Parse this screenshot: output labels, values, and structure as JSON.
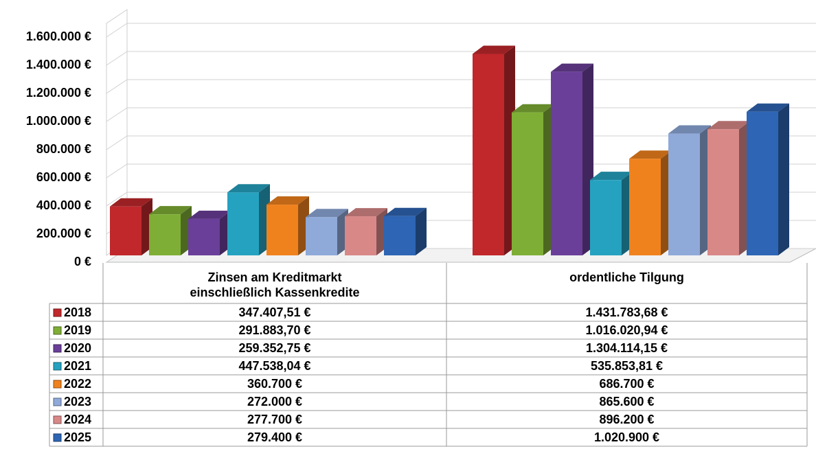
{
  "chart_data": {
    "type": "bar3d",
    "categories": [
      "Zinsen am Kreditmarkt einschließlich Kassenkredite",
      "ordentliche Tilgung"
    ],
    "series": [
      {
        "name": "2018",
        "color": "#c0282c",
        "values": [
          347407.51,
          1431783.68
        ],
        "value_labels": [
          "347.407,51 €",
          "1.431.783,68 €"
        ]
      },
      {
        "name": "2019",
        "color": "#7fae36",
        "values": [
          291883.7,
          1016020.94
        ],
        "value_labels": [
          "291.883,70 €",
          "1.016.020,94 €"
        ]
      },
      {
        "name": "2020",
        "color": "#6a3f99",
        "values": [
          259352.75,
          1304114.15
        ],
        "value_labels": [
          "259.352,75 €",
          "1.304.114,15 €"
        ]
      },
      {
        "name": "2021",
        "color": "#25a2c0",
        "values": [
          447538.04,
          535853.81
        ],
        "value_labels": [
          "447.538,04 €",
          "535.853,81 €"
        ]
      },
      {
        "name": "2022",
        "color": "#f0821e",
        "values": [
          360700,
          686700
        ],
        "value_labels": [
          "360.700 €",
          "686.700 €"
        ]
      },
      {
        "name": "2023",
        "color": "#8fa9d9",
        "values": [
          272000,
          865600
        ],
        "value_labels": [
          "272.000 €",
          "865.600 €"
        ]
      },
      {
        "name": "2024",
        "color": "#d98888",
        "values": [
          277700,
          896200
        ],
        "value_labels": [
          "277.700 €",
          "896.200 €"
        ]
      },
      {
        "name": "2025",
        "color": "#2e65b4",
        "values": [
          279400,
          1020900
        ],
        "value_labels": [
          "279.400 €",
          "1.020.900 €"
        ]
      }
    ],
    "ylim": [
      0,
      1600000
    ],
    "yticks": [
      {
        "value": 0,
        "label": "0 €"
      },
      {
        "value": 200000,
        "label": "200.000 €"
      },
      {
        "value": 400000,
        "label": "400.000 €"
      },
      {
        "value": 600000,
        "label": "600.000 €"
      },
      {
        "value": 800000,
        "label": "800.000 €"
      },
      {
        "value": 1000000,
        "label": "1.000.000 €"
      },
      {
        "value": 1200000,
        "label": "1.200.000 €"
      },
      {
        "value": 1400000,
        "label": "1.400.000 €"
      },
      {
        "value": 1600000,
        "label": "1.600.000 €"
      }
    ],
    "grid": true
  }
}
